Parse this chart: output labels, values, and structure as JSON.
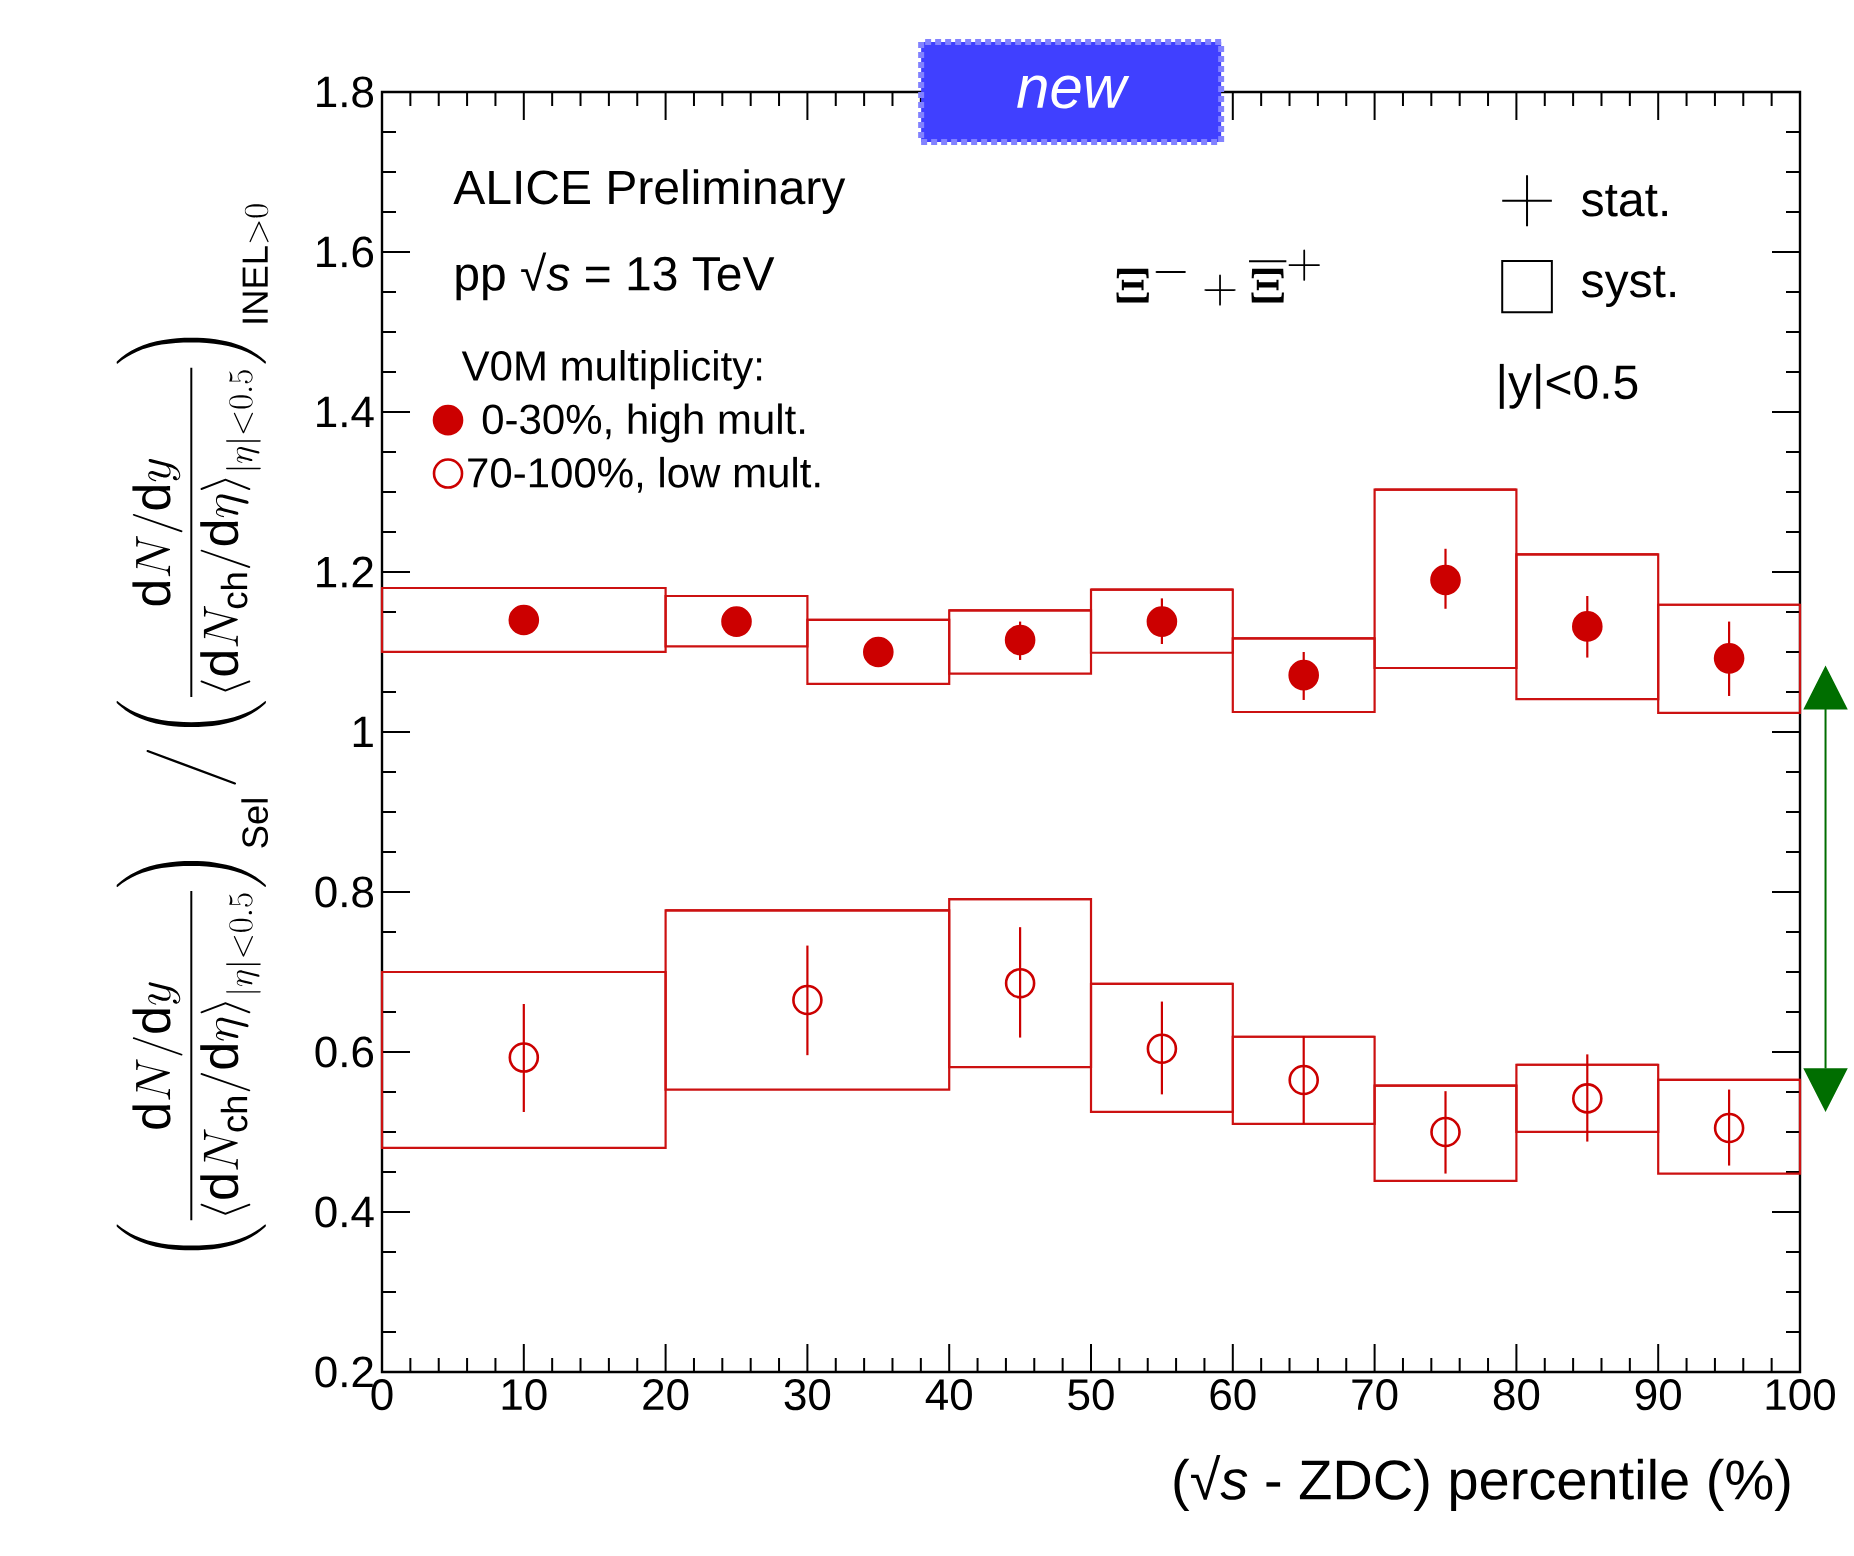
{
  "chart_data": {
    "type": "scatter",
    "xlabel": "(√*s* - ZDC) percentile (%)",
    "ylabel": "\\left(\\frac{\\mathrm{d}N/\\mathrm{d}y}{\\left\\langle \\mathrm{d}N_{\\mathrm{ch}}/\\mathrm{d}\\eta \\right\\rangle_{|\\eta|<0.5}}\\right)_{\\mathrm{Sel}} \\Big/ \\left(\\frac{\\mathrm{d}N/\\mathrm{d}y}{\\left\\langle \\mathrm{d}N_{\\mathrm{ch}}/\\mathrm{d}\\eta \\right\\rangle_{|\\eta|<0.5}}\\right)_{\\mathrm{INEL}>0}",
    "legend_title": "V0M multiplicity:",
    "legend": "top left",
    "xlim": [
      0,
      100
    ],
    "xticks": [
      0,
      10,
      20,
      30,
      40,
      50,
      60,
      70,
      80,
      90,
      100
    ],
    "ylim": [
      0.2,
      1.8
    ],
    "yticks": [
      0.2,
      0.4,
      0.6,
      0.8,
      1,
      1.2,
      1.4,
      1.6,
      1.8
    ],
    "annotations": [
      "ALICE Preliminary",
      "pp √*s* = 13 TeV",
      "\\boldsymbol{\\Xi}^{-} + \\overline{\\boldsymbol{\\Xi}}^{+}",
      "new",
      "stat.",
      "syst.",
      "|y|<0.5"
    ],
    "series": [
      {
        "type": "bar",
        "color": "#cc1111",
        "x": [
          10,
          25,
          35,
          45,
          55,
          65,
          75,
          85,
          95
        ],
        "xerrors": [
          10,
          5,
          5,
          5,
          5,
          5,
          5,
          5,
          5
        ],
        "base": [
          1.1,
          1.107,
          1.06,
          1.073,
          1.099,
          1.025,
          1.08,
          1.041,
          1.024
        ],
        "values": [
          0.08,
          0.063,
          0.08,
          0.079,
          0.079,
          0.092,
          0.223,
          0.181,
          0.135
        ]
      },
      {
        "type": "bar",
        "color": "#cc1111",
        "x": [
          10,
          30,
          45,
          55,
          65,
          75,
          85,
          95
        ],
        "xerrors": [
          10,
          10,
          5,
          5,
          5,
          5,
          5,
          5
        ],
        "base": [
          0.48,
          0.553,
          0.581,
          0.525,
          0.51,
          0.439,
          0.5,
          0.448
        ],
        "values": [
          0.22,
          0.224,
          0.21,
          0.16,
          0.109,
          0.119,
          0.084,
          0.117
        ]
      },
      {
        "name": "0-30%, high mult.",
        "color": "#cc0000",
        "marker": "circle",
        "x": [
          10,
          25,
          35,
          45,
          55,
          65,
          75,
          85,
          95
        ],
        "values": [
          1.14,
          1.138,
          1.1,
          1.115,
          1.138,
          1.071,
          1.19,
          1.132,
          1.092
        ],
        "errors": [
          null,
          null,
          null,
          [
            1.09,
            1.138
          ],
          [
            1.11,
            1.167
          ],
          [
            1.04,
            1.1
          ],
          [
            1.154,
            1.229
          ],
          [
            1.093,
            1.17
          ],
          [
            1.045,
            1.138
          ]
        ]
      },
      {
        "name": "70-100%, low mult.",
        "color": "#cc0000",
        "marker": "open circle",
        "x": [
          10,
          30,
          45,
          55,
          65,
          75,
          85,
          95
        ],
        "values": [
          0.593,
          0.665,
          0.686,
          0.604,
          0.565,
          0.5,
          0.542,
          0.505
        ],
        "errors": [
          [
            0.525,
            0.66
          ],
          [
            0.596,
            0.733
          ],
          [
            0.618,
            0.756
          ],
          [
            0.547,
            0.663
          ],
          [
            0.51,
            0.62
          ],
          [
            0.448,
            0.551
          ],
          [
            0.488,
            0.597
          ],
          [
            0.458,
            0.553
          ]
        ]
      }
    ]
  }
}
